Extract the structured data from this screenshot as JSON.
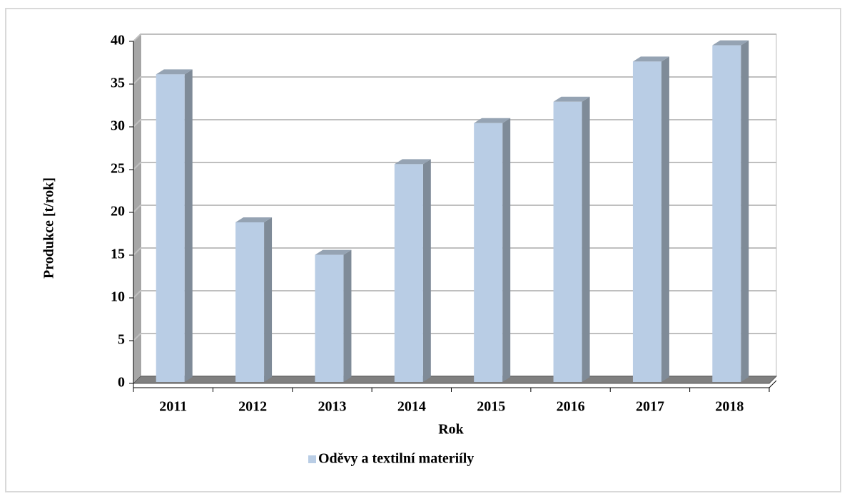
{
  "chart_data": {
    "type": "bar3d",
    "x_label": "Rok",
    "y_label": "Produkce [t/rok]",
    "categories": [
      "2011",
      "2012",
      "2013",
      "2014",
      "2015",
      "2016",
      "2017",
      "2018"
    ],
    "series": [
      {
        "name": "Oděvy a textilní materiíly",
        "color": "#b9cde5",
        "values": [
          35.8,
          18.5,
          14.7,
          25.3,
          30.1,
          32.6,
          37.3,
          39.2
        ]
      }
    ],
    "ylim": [
      0,
      40
    ],
    "yticks": [
      0,
      5,
      10,
      15,
      20,
      25,
      30,
      35,
      40
    ],
    "grid": true,
    "legend": "bottom"
  }
}
